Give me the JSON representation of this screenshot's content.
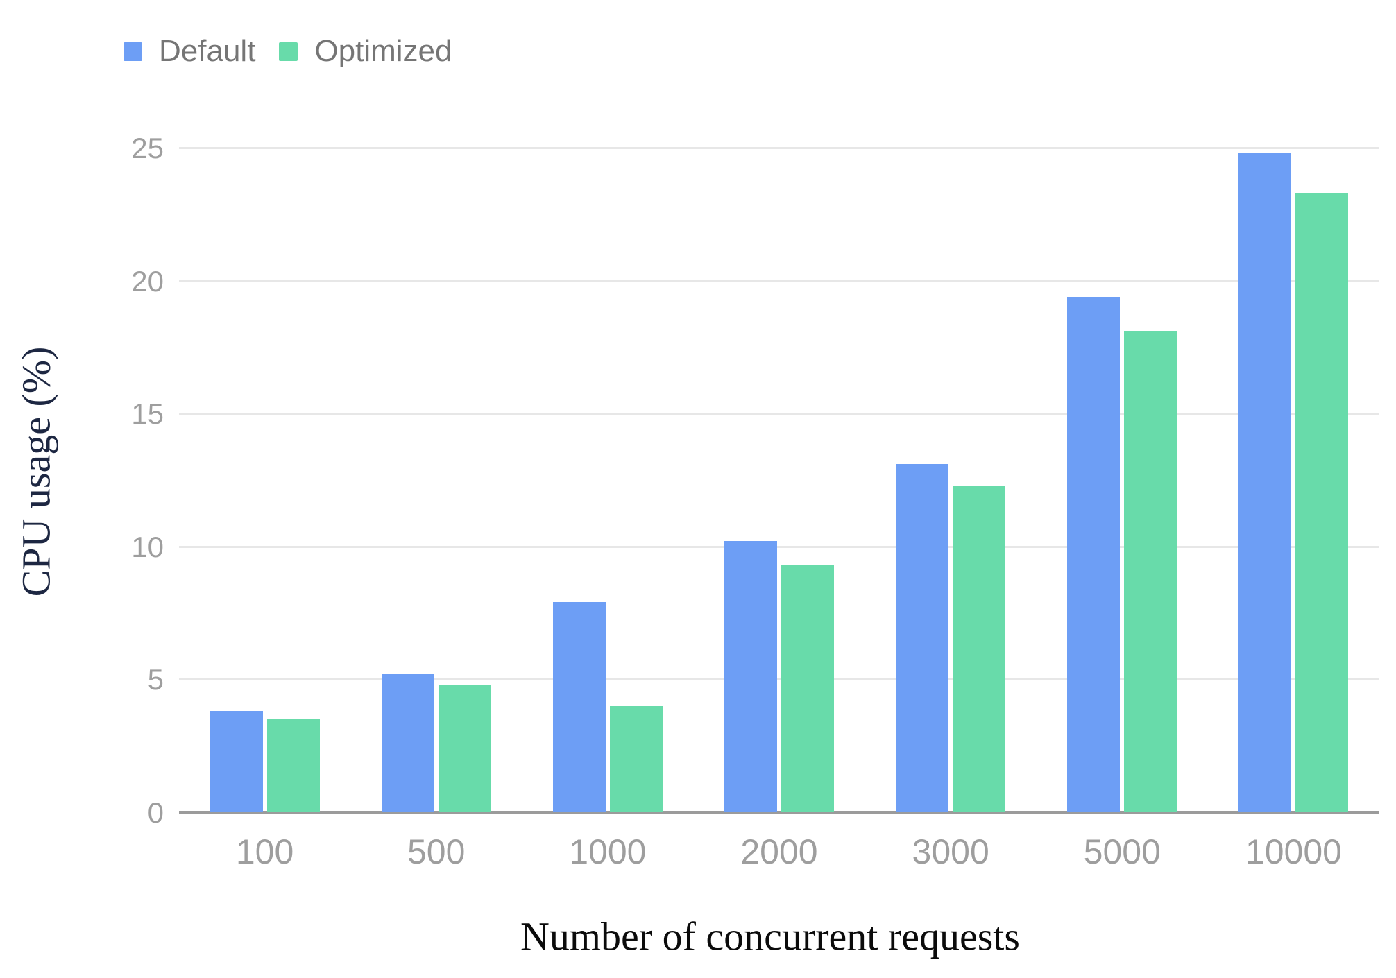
{
  "chart_data": {
    "type": "bar",
    "title": "",
    "xlabel": "Number of concurrent requests",
    "ylabel": "CPU usage (%)",
    "categories": [
      "100",
      "500",
      "1000",
      "2000",
      "3000",
      "5000",
      "10000"
    ],
    "series": [
      {
        "name": "Default",
        "color": "#6d9ef5",
        "values": [
          3.8,
          5.2,
          7.9,
          10.2,
          13.1,
          19.4,
          24.8
        ]
      },
      {
        "name": "Optimized",
        "color": "#68dbaa",
        "values": [
          3.5,
          4.8,
          4.0,
          9.3,
          12.3,
          18.1,
          23.3
        ]
      }
    ],
    "ylim": [
      0,
      25
    ],
    "yticks": [
      0,
      5,
      10,
      15,
      20,
      25
    ],
    "grid": true,
    "legend_position": "top-left"
  },
  "colors": {
    "bar_default": "#6d9ef5",
    "bar_optimized": "#68dbaa",
    "gridline": "#e7e7e7",
    "axis_line": "#9b9b9b",
    "tick_label": "#9e9e9e",
    "legend_text": "#757575",
    "y_title": "#1d2742",
    "x_title": "#0b0b0b",
    "background": "#ffffff"
  }
}
